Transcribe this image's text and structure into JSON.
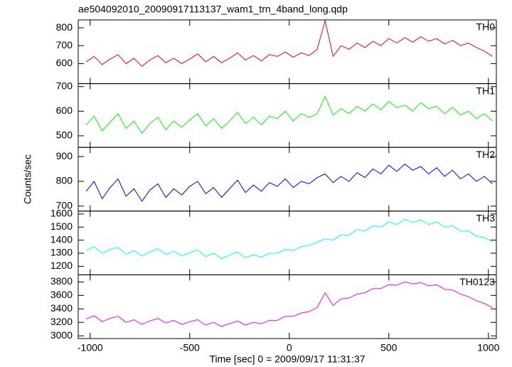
{
  "chart_data": {
    "type": "line",
    "title": "ae504092010_20090917113137_wam1_trn_4band_long.qdp",
    "xlabel": "Time [sec] 0 = 2009/09/17 11:31:37",
    "ylabel": "Counts/sec",
    "xlim": [
      -1060,
      1040
    ],
    "xticks": [
      -1000,
      -500,
      0,
      500,
      1000
    ],
    "x": [
      -1020,
      -980,
      -940,
      -900,
      -860,
      -820,
      -780,
      -740,
      -700,
      -660,
      -620,
      -580,
      -540,
      -500,
      -460,
      -420,
      -380,
      -340,
      -300,
      -260,
      -220,
      -180,
      -140,
      -100,
      -60,
      -20,
      20,
      60,
      100,
      140,
      180,
      220,
      260,
      300,
      340,
      380,
      420,
      460,
      500,
      540,
      580,
      620,
      660,
      700,
      740,
      780,
      820,
      860,
      900,
      940,
      980,
      1020
    ],
    "series": [
      {
        "name": "TH0",
        "color": "#ff0000",
        "ylim": [
          488,
          844
        ],
        "yticks": [
          600,
          700,
          800
        ],
        "values": [
          610,
          640,
          595,
          625,
          650,
          600,
          630,
          585,
          620,
          645,
          605,
          630,
          600,
          625,
          655,
          610,
          640,
          605,
          630,
          660,
          620,
          645,
          615,
          650,
          640,
          665,
          635,
          660,
          645,
          680,
          840,
          640,
          700,
          680,
          715,
          690,
          725,
          700,
          740,
          715,
          745,
          720,
          750,
          725,
          740,
          710,
          730,
          700,
          715,
          690,
          670,
          640
        ]
      },
      {
        "name": "TH1",
        "color": "#00ff00",
        "ylim": [
          453,
          712
        ],
        "yticks": [
          500,
          600,
          700
        ],
        "values": [
          545,
          580,
          520,
          555,
          590,
          530,
          560,
          510,
          550,
          575,
          525,
          560,
          535,
          565,
          590,
          540,
          570,
          530,
          560,
          595,
          550,
          575,
          545,
          580,
          570,
          600,
          560,
          590,
          575,
          590,
          660,
          585,
          610,
          590,
          620,
          600,
          630,
          605,
          640,
          615,
          625,
          600,
          635,
          610,
          620,
          590,
          615,
          585,
          600,
          570,
          590,
          560
        ]
      },
      {
        "name": "TH2",
        "color": "#0000ff",
        "ylim": [
          680,
          937
        ],
        "yticks": [
          700,
          800,
          900
        ],
        "values": [
          760,
          800,
          730,
          775,
          810,
          740,
          770,
          720,
          765,
          790,
          735,
          770,
          745,
          780,
          800,
          750,
          775,
          735,
          770,
          805,
          755,
          785,
          760,
          795,
          780,
          810,
          775,
          800,
          790,
          815,
          830,
          795,
          820,
          800,
          835,
          815,
          850,
          830,
          865,
          840,
          870,
          845,
          860,
          830,
          855,
          820,
          845,
          810,
          830,
          800,
          820,
          790
        ]
      },
      {
        "name": "TH3",
        "color": "#00ffff",
        "ylim": [
          1135,
          1622
        ],
        "yticks": [
          1200,
          1300,
          1400,
          1500,
          1600
        ],
        "values": [
          1320,
          1350,
          1300,
          1330,
          1345,
          1290,
          1320,
          1280,
          1310,
          1335,
          1290,
          1315,
          1280,
          1305,
          1325,
          1275,
          1300,
          1260,
          1285,
          1310,
          1265,
          1290,
          1270,
          1300,
          1300,
          1330,
          1320,
          1350,
          1360,
          1385,
          1410,
          1400,
          1440,
          1440,
          1480,
          1470,
          1510,
          1500,
          1540,
          1520,
          1560,
          1535,
          1555,
          1520,
          1540,
          1500,
          1510,
          1470,
          1470,
          1430,
          1420,
          1390
        ]
      },
      {
        "name": "TH0123",
        "color": "#ff00ff",
        "ylim": [
          2960,
          3905
        ],
        "yticks": [
          3000,
          3200,
          3400,
          3600,
          3800
        ],
        "values": [
          3250,
          3300,
          3210,
          3260,
          3290,
          3200,
          3240,
          3170,
          3220,
          3260,
          3190,
          3230,
          3170,
          3210,
          3240,
          3160,
          3200,
          3140,
          3180,
          3220,
          3160,
          3200,
          3180,
          3230,
          3230,
          3290,
          3290,
          3340,
          3360,
          3420,
          3640,
          3450,
          3550,
          3560,
          3620,
          3640,
          3700,
          3700,
          3760,
          3750,
          3800,
          3770,
          3790,
          3740,
          3760,
          3690,
          3680,
          3620,
          3580,
          3520,
          3480,
          3420
        ]
      }
    ]
  }
}
